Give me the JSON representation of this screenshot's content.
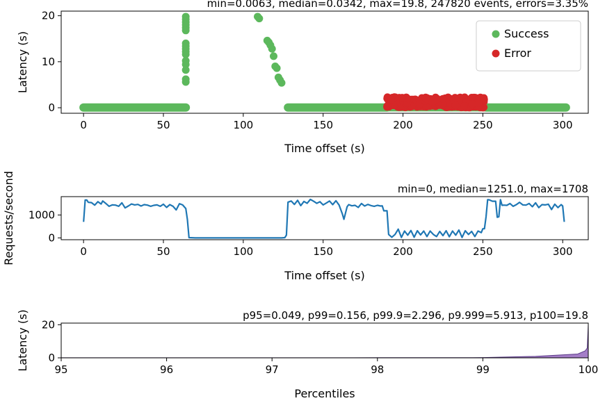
{
  "chart_data": [
    {
      "type": "scatter",
      "title": "min=0.0063, median=0.0342, max=19.8, 247820 events, errors=3.35%",
      "xlabel": "Time offset (s)",
      "ylabel": "Latency (s)",
      "xlim": [
        -14,
        316
      ],
      "ylim": [
        -1.2,
        21
      ],
      "xticks": [
        0,
        50,
        100,
        150,
        200,
        250,
        300
      ],
      "yticks": [
        0,
        10,
        20
      ],
      "legend": "top-right",
      "series": [
        {
          "name": "Success",
          "color": "#5cb85c",
          "segments": [
            {
              "x_range": [
                0,
                64
              ],
              "y": 0.05
            },
            {
              "x_range": [
                128,
                190
              ],
              "y": 0.05
            },
            {
              "x_range": [
                190,
                251
              ],
              "y": 0.1
            },
            {
              "x_range": [
                252,
                302
              ],
              "y": 0.05
            }
          ],
          "points": [
            [
              64,
              19.8
            ],
            [
              64,
              19.2
            ],
            [
              64,
              18.6
            ],
            [
              64,
              18.0
            ],
            [
              64,
              17.4
            ],
            [
              64,
              16.8
            ],
            [
              64,
              14.0
            ],
            [
              64,
              13.4
            ],
            [
              64,
              12.8
            ],
            [
              64,
              12.2
            ],
            [
              64,
              11.6
            ],
            [
              64,
              10.2
            ],
            [
              64,
              9.4
            ],
            [
              64,
              8.2
            ],
            [
              64,
              6.2
            ],
            [
              64,
              5.6
            ],
            [
              109,
              19.8
            ],
            [
              110,
              19.4
            ],
            [
              115,
              14.6
            ],
            [
              116,
              14.2
            ],
            [
              117,
              13.6
            ],
            [
              118,
              12.8
            ],
            [
              119,
              11.2
            ],
            [
              120,
              9.0
            ],
            [
              121,
              8.6
            ],
            [
              122,
              6.6
            ],
            [
              123,
              6.0
            ],
            [
              124,
              5.4
            ]
          ]
        },
        {
          "name": "Error",
          "color": "#d62728",
          "band": {
            "x_range": [
              190,
              251
            ],
            "y_low": 0.0,
            "y_high": 2.3
          }
        }
      ]
    },
    {
      "type": "line",
      "title": "min=0, median=1251.0, max=1708",
      "xlabel": "Time offset (s)",
      "ylabel": "Requests/second",
      "xlim": [
        -14,
        316
      ],
      "ylim": [
        -80,
        1800
      ],
      "xticks": [
        0,
        50,
        100,
        150,
        200,
        250,
        300
      ],
      "yticks": [
        0,
        1000
      ],
      "series": [
        {
          "color": "#1f77b4",
          "x": [
            0,
            1,
            2,
            3,
            5,
            7,
            9,
            11,
            12,
            14,
            16,
            18,
            20,
            22,
            24,
            26,
            28,
            30,
            32,
            34,
            36,
            38,
            40,
            42,
            44,
            46,
            48,
            50,
            52,
            54,
            56,
            58,
            60,
            62,
            64,
            65,
            66,
            70,
            80,
            100,
            110,
            120,
            124,
            126,
            127,
            128,
            130,
            132,
            134,
            136,
            138,
            140,
            142,
            144,
            146,
            148,
            150,
            152,
            154,
            156,
            158,
            160,
            162,
            163,
            165,
            166,
            168,
            170,
            172,
            174,
            176,
            178,
            180,
            182,
            184,
            186,
            187,
            188,
            190,
            191,
            193,
            195,
            197,
            199,
            201,
            203,
            205,
            207,
            209,
            211,
            213,
            215,
            217,
            219,
            221,
            223,
            225,
            227,
            229,
            231,
            233,
            235,
            237,
            239,
            241,
            243,
            245,
            247,
            249,
            250,
            251,
            252,
            253,
            254,
            256,
            258,
            259,
            260,
            261,
            262,
            263,
            265,
            267,
            269,
            271,
            273,
            275,
            277,
            279,
            281,
            283,
            285,
            287,
            289,
            291,
            293,
            295,
            297,
            299,
            300,
            301
          ],
          "values": [
            700,
            1650,
            1650,
            1550,
            1540,
            1430,
            1580,
            1480,
            1610,
            1500,
            1380,
            1440,
            1430,
            1380,
            1530,
            1310,
            1390,
            1480,
            1440,
            1460,
            1390,
            1450,
            1430,
            1380,
            1420,
            1440,
            1380,
            1470,
            1330,
            1450,
            1380,
            1220,
            1490,
            1440,
            1280,
            800,
            10,
            0,
            0,
            0,
            0,
            0,
            0,
            10,
            120,
            1560,
            1610,
            1460,
            1640,
            1410,
            1590,
            1510,
            1680,
            1600,
            1510,
            1580,
            1440,
            1520,
            1610,
            1450,
            1620,
            1430,
            1050,
            810,
            1360,
            1450,
            1400,
            1420,
            1330,
            1500,
            1390,
            1460,
            1410,
            1380,
            1420,
            1390,
            1400,
            1180,
            1180,
            150,
            30,
            150,
            380,
            20,
            300,
            120,
            320,
            30,
            310,
            130,
            300,
            60,
            300,
            150,
            60,
            280,
            100,
            310,
            50,
            300,
            120,
            340,
            20,
            310,
            150,
            280,
            60,
            300,
            230,
            400,
            400,
            920,
            1670,
            1660,
            1600,
            1600,
            900,
            920,
            1670,
            1420,
            1430,
            1420,
            1500,
            1380,
            1450,
            1550,
            1440,
            1430,
            1500,
            1360,
            1530,
            1320,
            1450,
            1440,
            1470,
            1240,
            1470,
            1320,
            1450,
            1390,
            700
          ]
        }
      ]
    },
    {
      "type": "area",
      "title": "p95=0.049, p99=0.156, p99.9=2.296, p9.999=5.913, p100=19.8",
      "xlabel": "Percentiles",
      "ylabel": "Latency (s)",
      "xlim": [
        95,
        100
      ],
      "ylim": [
        0,
        21
      ],
      "xticks": [
        95,
        96,
        97,
        98,
        99,
        100
      ],
      "yticks": [
        0,
        20
      ],
      "series": [
        {
          "color": "#9467bd",
          "x": [
            95,
            96,
            97,
            98,
            98.9,
            99,
            99.5,
            99.9,
            99.97,
            99.99,
            100
          ],
          "values": [
            0.049,
            0.05,
            0.06,
            0.08,
            0.12,
            0.156,
            0.9,
            2.296,
            4.2,
            5.913,
            19.8
          ]
        }
      ]
    }
  ]
}
